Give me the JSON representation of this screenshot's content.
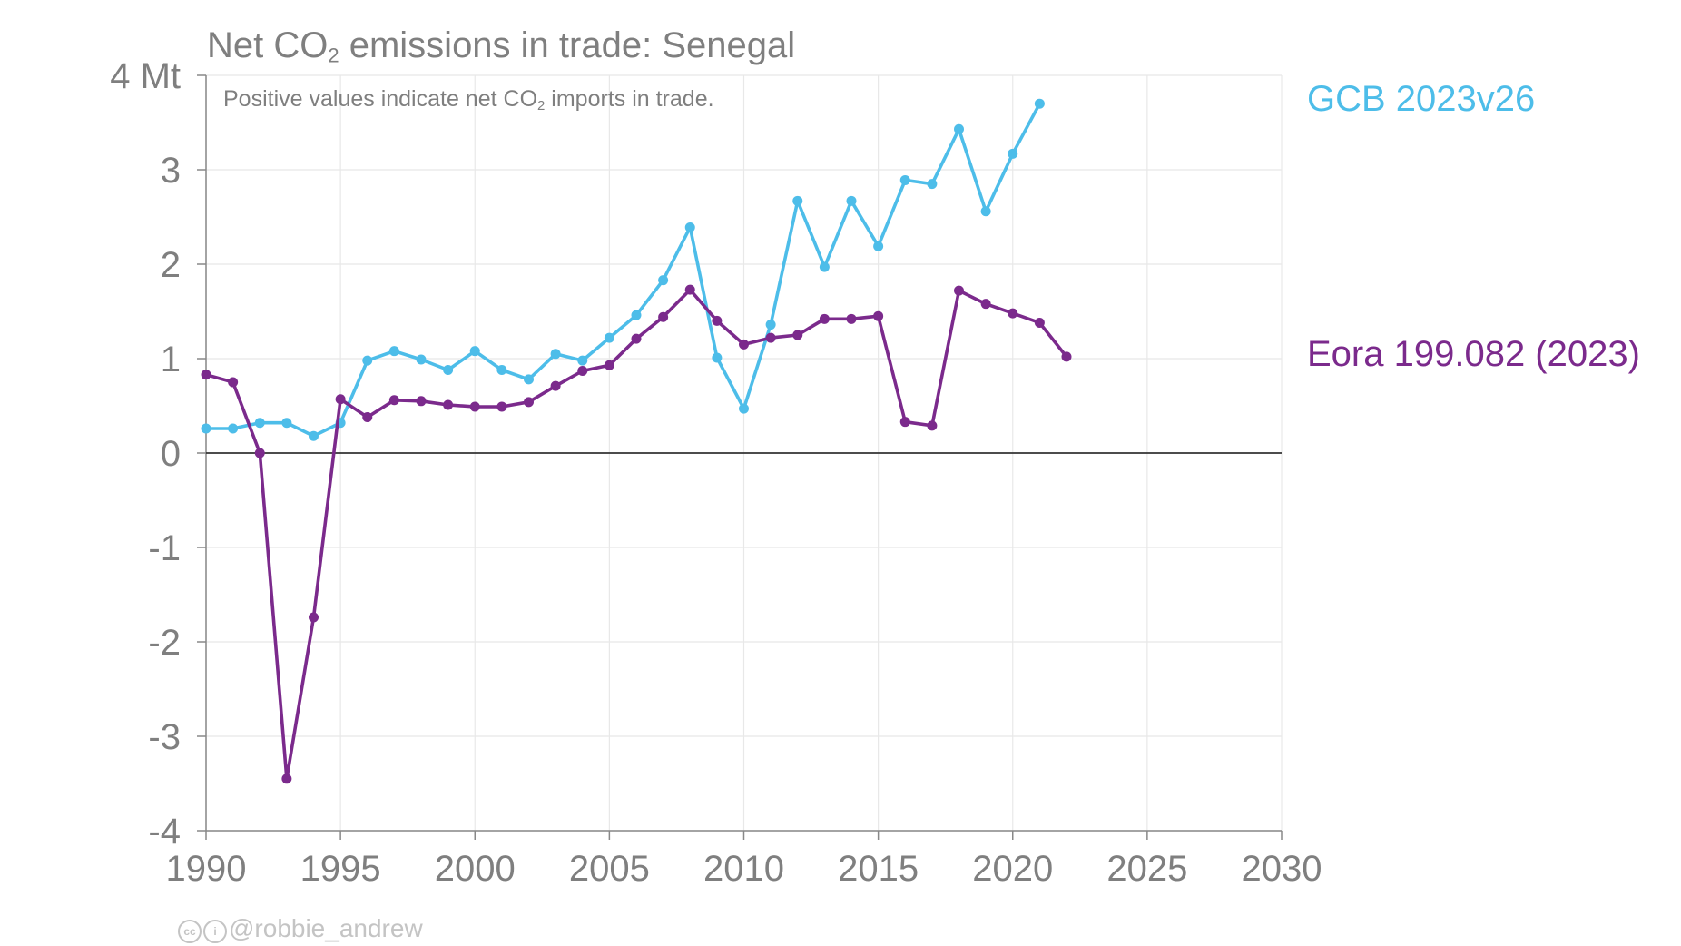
{
  "title": {
    "pre": "Net CO",
    "sub": "2",
    "post": " emissions in trade: Senegal"
  },
  "subtitle": {
    "pre": "Positive values indicate net CO",
    "sub": "2",
    "post": " imports in trade."
  },
  "credit": {
    "icon_cc": "cc",
    "icon_by": "i",
    "handle": "@robbie_andrew"
  },
  "colors": {
    "gcb": "#4dbde9",
    "eora": "#7b2a8c",
    "axis_text": "#7f7f7f",
    "grid": "#e8e8e8",
    "zero_line": "#333333"
  },
  "chart_data": {
    "type": "line",
    "title": "Net CO2 emissions in trade: Senegal",
    "ylabel": "",
    "y_unit_label": "4 Mt",
    "xlim": [
      1990,
      2030
    ],
    "ylim": [
      -4,
      4
    ],
    "x_ticks": [
      1990,
      1995,
      2000,
      2005,
      2010,
      2015,
      2020,
      2025,
      2030
    ],
    "y_ticks": [
      -4,
      -3,
      -2,
      -1,
      0,
      1,
      2,
      3,
      4
    ],
    "y_tick_labels": [
      "-4",
      "-3",
      "-2",
      "-1",
      "0",
      "1",
      "2",
      "3",
      "4 Mt"
    ],
    "grid": true,
    "legend": "direct labels at right end",
    "series": [
      {
        "name": "GCB 2023v26",
        "color": "#4dbde9",
        "x": [
          1990,
          1991,
          1992,
          1993,
          1994,
          1995,
          1996,
          1997,
          1998,
          1999,
          2000,
          2001,
          2002,
          2003,
          2004,
          2005,
          2006,
          2007,
          2008,
          2009,
          2010,
          2011,
          2012,
          2013,
          2014,
          2015,
          2016,
          2017,
          2018,
          2019,
          2020,
          2021
        ],
        "y": [
          0.26,
          0.26,
          0.32,
          0.32,
          0.18,
          0.32,
          0.98,
          1.08,
          0.99,
          0.88,
          1.08,
          0.88,
          0.78,
          1.05,
          0.98,
          1.22,
          1.46,
          1.83,
          2.39,
          1.01,
          0.47,
          1.36,
          2.67,
          1.97,
          2.67,
          2.19,
          2.89,
          2.85,
          3.43,
          2.56,
          3.17,
          3.7
        ]
      },
      {
        "name": "Eora 199.082 (2023)",
        "color": "#7b2a8c",
        "x": [
          1990,
          1991,
          1992,
          1993,
          1994,
          1995,
          1996,
          1997,
          1998,
          1999,
          2000,
          2001,
          2002,
          2003,
          2004,
          2005,
          2006,
          2007,
          2008,
          2009,
          2010,
          2011,
          2012,
          2013,
          2014,
          2015,
          2016,
          2017,
          2018,
          2019,
          2020,
          2021,
          2022
        ],
        "y": [
          0.83,
          0.75,
          0.0,
          -3.45,
          -1.74,
          0.57,
          0.38,
          0.56,
          0.55,
          0.51,
          0.49,
          0.49,
          0.54,
          0.71,
          0.87,
          0.93,
          1.21,
          1.44,
          1.73,
          1.4,
          1.15,
          1.22,
          1.25,
          1.42,
          1.42,
          1.45,
          0.33,
          0.29,
          1.72,
          1.58,
          1.48,
          1.38,
          1.02
        ]
      }
    ]
  }
}
